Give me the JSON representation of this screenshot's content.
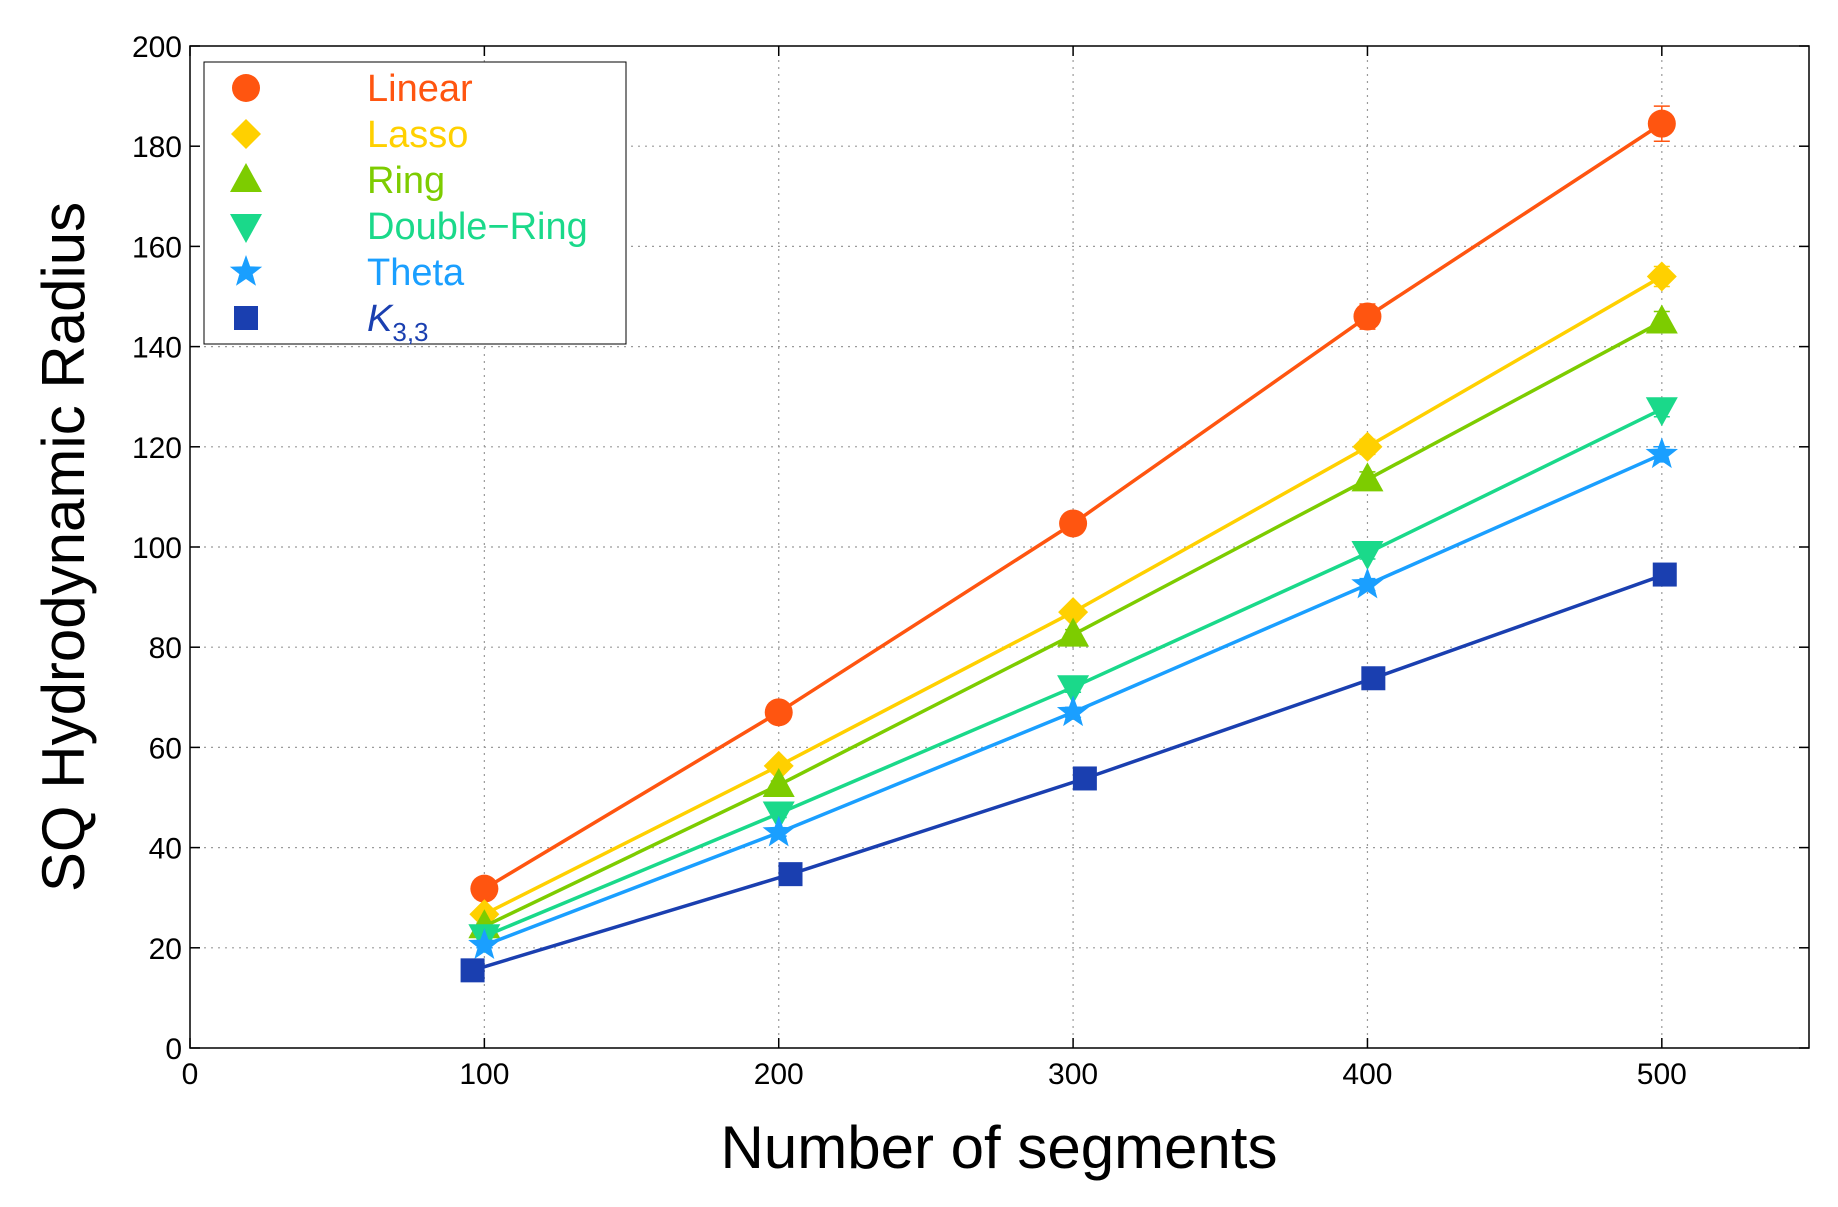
{
  "chart_data": {
    "type": "line",
    "title": "",
    "xlabel": "Number of segments",
    "ylabel": "SQ Hydrodynamic Radius",
    "xlim": [
      0,
      550
    ],
    "ylim": [
      0,
      200
    ],
    "xticks": [
      0,
      100,
      200,
      300,
      400,
      500
    ],
    "yticks": [
      0,
      20,
      40,
      60,
      80,
      100,
      120,
      140,
      160,
      180,
      200
    ],
    "grid": true,
    "legend_position": "top-left",
    "series": [
      {
        "name": "Linear",
        "color": "#ff5510",
        "marker": "circle",
        "points": [
          {
            "x": 100,
            "y": 31.8,
            "err": 0.8
          },
          {
            "x": 200,
            "y": 67.0,
            "err": 1.0
          },
          {
            "x": 300,
            "y": 104.7,
            "err": 1.2
          },
          {
            "x": 400,
            "y": 146.0,
            "err": 2.5
          },
          {
            "x": 500,
            "y": 184.5,
            "err": 3.5
          }
        ]
      },
      {
        "name": "Lasso",
        "color": "#ffd000",
        "marker": "diamond",
        "points": [
          {
            "x": 100,
            "y": 26.7,
            "err": 0.6
          },
          {
            "x": 200,
            "y": 56.3,
            "err": 0.8
          },
          {
            "x": 300,
            "y": 87.0,
            "err": 1.0
          },
          {
            "x": 400,
            "y": 120.0,
            "err": 1.5
          },
          {
            "x": 500,
            "y": 154.0,
            "err": 2.0
          }
        ]
      },
      {
        "name": "Ring",
        "color": "#7dcc00",
        "marker": "triangle-up",
        "points": [
          {
            "x": 100,
            "y": 24.3,
            "err": 0.6
          },
          {
            "x": 200,
            "y": 52.5,
            "err": 0.8
          },
          {
            "x": 300,
            "y": 82.5,
            "err": 1.0
          },
          {
            "x": 400,
            "y": 113.5,
            "err": 1.5
          },
          {
            "x": 500,
            "y": 145.0,
            "err": 2.0
          }
        ]
      },
      {
        "name": "Double−Ring",
        "color": "#1ad98a",
        "marker": "triangle-down",
        "points": [
          {
            "x": 100,
            "y": 22.3,
            "err": 0.5
          },
          {
            "x": 200,
            "y": 46.8,
            "err": 0.8
          },
          {
            "x": 300,
            "y": 72.0,
            "err": 1.0
          },
          {
            "x": 400,
            "y": 98.8,
            "err": 1.2
          },
          {
            "x": 500,
            "y": 127.5,
            "err": 1.5
          }
        ]
      },
      {
        "name": "Theta",
        "color": "#1a9fff",
        "marker": "star",
        "points": [
          {
            "x": 100,
            "y": 20.5,
            "err": 0.5
          },
          {
            "x": 200,
            "y": 43.0,
            "err": 0.7
          },
          {
            "x": 300,
            "y": 67.0,
            "err": 1.0
          },
          {
            "x": 400,
            "y": 92.5,
            "err": 1.2
          },
          {
            "x": 500,
            "y": 118.5,
            "err": 1.5
          }
        ]
      },
      {
        "name": "K",
        "subscript": "3,3",
        "color": "#1a3fb0",
        "marker": "square",
        "points": [
          {
            "x": 96,
            "y": 15.5,
            "err": 0.4
          },
          {
            "x": 204,
            "y": 34.7,
            "err": 0.6
          },
          {
            "x": 304,
            "y": 53.8,
            "err": 0.8
          },
          {
            "x": 402,
            "y": 73.8,
            "err": 1.0
          },
          {
            "x": 501,
            "y": 94.5,
            "err": 1.2
          }
        ]
      }
    ]
  }
}
